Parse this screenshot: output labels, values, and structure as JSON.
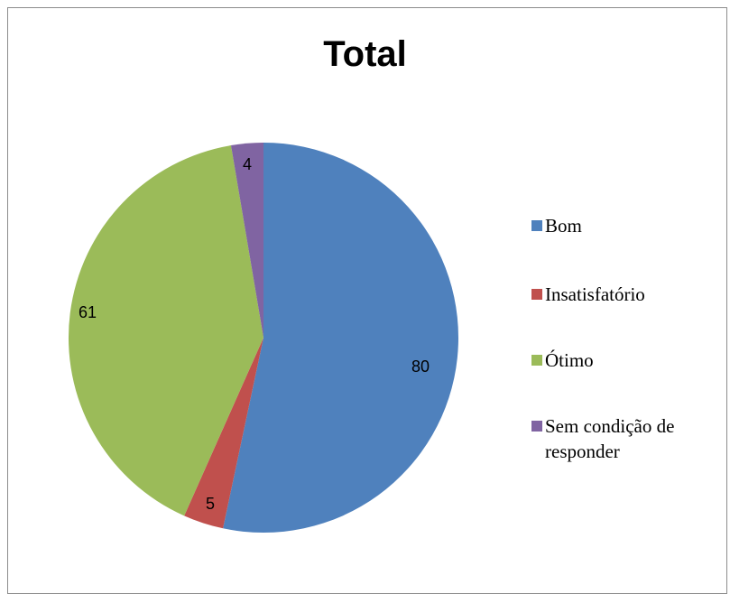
{
  "chart_data": {
    "type": "pie",
    "title": "Total",
    "categories": [
      "Bom",
      "Insatisfatório",
      "Ótimo",
      "Sem condição de responder"
    ],
    "values": [
      80,
      5,
      61,
      4
    ],
    "colors": [
      "#4f81bd",
      "#c0504d",
      "#9bbb59",
      "#8064a2"
    ],
    "legend_position": "right",
    "data_labels": [
      "80",
      "5",
      "61",
      "4"
    ]
  }
}
